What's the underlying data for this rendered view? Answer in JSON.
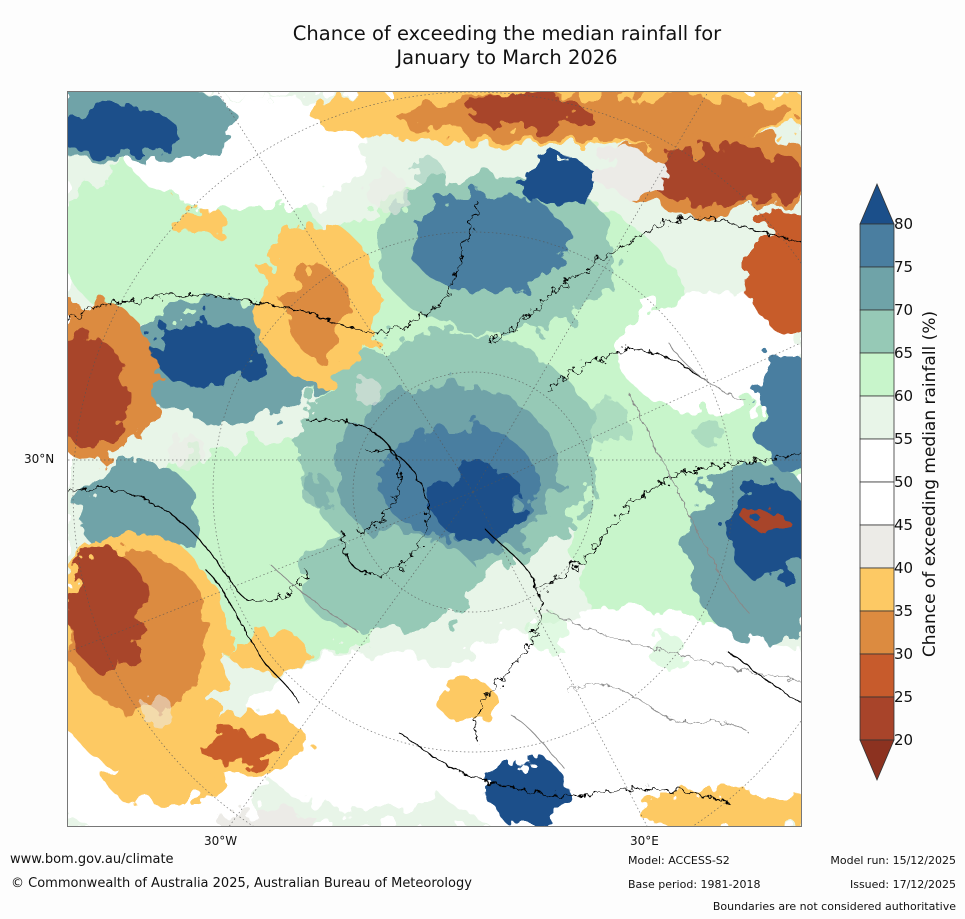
{
  "title": {
    "line1": "Chance of exceeding the median rainfall for",
    "line2": "January to March 2026"
  },
  "axes": {
    "lat_label": "30°N",
    "lon_labels": [
      "30°W",
      "30°E"
    ]
  },
  "legend": {
    "title": "Chance of exceeding median rainfall (%)",
    "ticks": [
      "80",
      "75",
      "70",
      "65",
      "60",
      "55",
      "50",
      "45",
      "40",
      "35",
      "30",
      "25",
      "20"
    ],
    "colors": [
      "#1b4f8a",
      "#4a7ea0",
      "#6fa3a8",
      "#96c9b6",
      "#c8f5cb",
      "#e8f5e8",
      "#ffffff",
      "#ffffff",
      "#ecebe7",
      "#fdc964",
      "#dc8b40",
      "#c75b2c",
      "#a8442a",
      "#8c3220"
    ]
  },
  "footer": {
    "site": "www.bom.gov.au/climate",
    "copyright": "© Commonwealth of Australia 2025, Australian Bureau of Meteorology",
    "model": "Model: ACCESS-S2",
    "base_period": "Base period: 1981-2018",
    "model_run": "Model run: 15/12/2025",
    "issued": "Issued: 17/12/2025",
    "boundaries": "Boundaries are not considered authoritative"
  }
}
